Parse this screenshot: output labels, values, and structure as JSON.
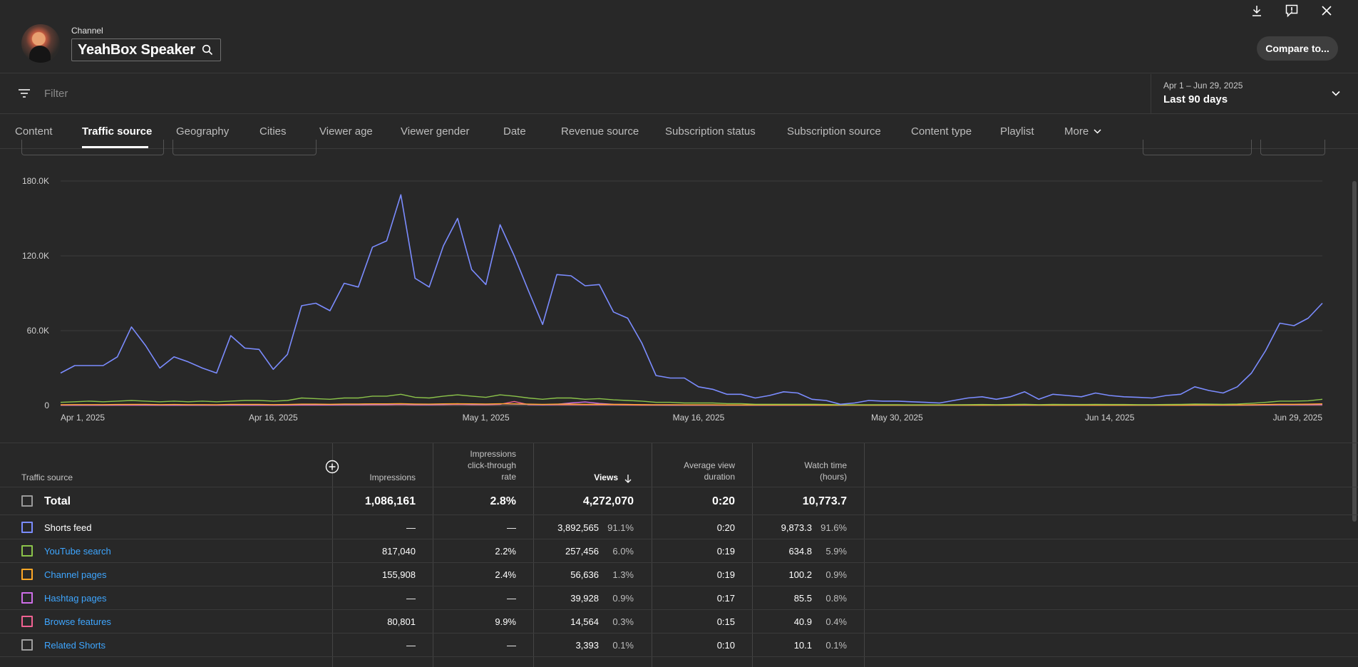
{
  "header": {
    "channel_label": "Channel",
    "channel_name": "YeahBox Speaker",
    "compare_button": "Compare to..."
  },
  "filter": {
    "placeholder": "Filter",
    "date_range_sub": "Apr 1 – Jun 29, 2025",
    "date_range_label": "Last 90 days"
  },
  "tabs": [
    {
      "label": "Content"
    },
    {
      "label": "Traffic source",
      "active": true
    },
    {
      "label": "Geography"
    },
    {
      "label": "Cities"
    },
    {
      "label": "Viewer age"
    },
    {
      "label": "Viewer gender"
    },
    {
      "label": "Date"
    },
    {
      "label": "Revenue source"
    },
    {
      "label": "Subscription status"
    },
    {
      "label": "Subscription source"
    },
    {
      "label": "Content type"
    },
    {
      "label": "Playlist"
    },
    {
      "label": "More"
    }
  ],
  "chart_data": {
    "type": "line",
    "y_tick_labels": [
      "180.0K",
      "120.0K",
      "60.0K",
      "0"
    ],
    "y_ticks": [
      180000,
      120000,
      60000,
      0
    ],
    "ylim": [
      0,
      180000
    ],
    "x_tick_labels": [
      "Apr 1, 2025",
      "Apr 16, 2025",
      "May 1, 2025",
      "May 16, 2025",
      "May 30, 2025",
      "Jun 14, 2025",
      "Jun 29, 2025"
    ],
    "x_tick_days": [
      0,
      15,
      30,
      45,
      59,
      74,
      89
    ],
    "grid": true,
    "series": [
      {
        "color": "#7b8cff",
        "values": [
          26000,
          32000,
          32000,
          32000,
          39000,
          63000,
          48000,
          30000,
          39000,
          35000,
          30000,
          26000,
          56000,
          46000,
          45000,
          29000,
          41000,
          80000,
          82000,
          76000,
          98000,
          95000,
          127000,
          132000,
          169000,
          102000,
          95000,
          128000,
          150000,
          109000,
          97000,
          145000,
          120000,
          92000,
          65000,
          105000,
          104000,
          96000,
          97000,
          75000,
          70000,
          50000,
          24000,
          22000,
          22000,
          15000,
          13000,
          9000,
          9000,
          6000,
          8000,
          11000,
          10000,
          5000,
          4000,
          1000,
          2000,
          4000,
          3500,
          3500,
          3000,
          2500,
          2000,
          4000,
          6000,
          7000,
          5000,
          7000,
          11000,
          5000,
          9000,
          8000,
          7000,
          10000,
          8000,
          7000,
          6500,
          6000,
          8000,
          9000,
          15000,
          12000,
          10000,
          15000,
          26000,
          44000,
          66000,
          64000,
          70000,
          82000
        ]
      },
      {
        "color": "#8bc34a",
        "values": [
          2500,
          3000,
          3500,
          3000,
          3500,
          4000,
          3500,
          3000,
          3500,
          3000,
          3500,
          3000,
          3500,
          4000,
          4000,
          3500,
          4000,
          6000,
          5500,
          5000,
          6000,
          6000,
          7500,
          7500,
          9000,
          6500,
          6000,
          7500,
          8500,
          7500,
          6500,
          8500,
          7500,
          6000,
          5000,
          6000,
          6000,
          5000,
          5500,
          4500,
          4000,
          3500,
          2500,
          2500,
          2000,
          2000,
          2000,
          1500,
          1500,
          1000,
          1000,
          1000,
          1000,
          1000,
          800,
          600,
          600,
          600,
          600,
          600,
          500,
          500,
          500,
          600,
          700,
          800,
          700,
          800,
          1000,
          700,
          900,
          800,
          800,
          900,
          800,
          800,
          700,
          700,
          800,
          900,
          1200,
          1100,
          1000,
          1200,
          1800,
          2500,
          3500,
          3500,
          3800,
          5000
        ]
      },
      {
        "color": "#ffa726",
        "values": [
          600,
          700,
          700,
          700,
          800,
          900,
          900,
          700,
          800,
          700,
          700,
          600,
          900,
          900,
          900,
          700,
          800,
          1100,
          1100,
          1000,
          1200,
          1200,
          1300,
          1300,
          1500,
          1200,
          1100,
          1300,
          1400,
          1300,
          1200,
          1400,
          1300,
          1100,
          900,
          1100,
          1100,
          1000,
          1000,
          900,
          800,
          700,
          600,
          600,
          500,
          500,
          500,
          400,
          400,
          400,
          400,
          400,
          400,
          400,
          300,
          300,
          300,
          300,
          300,
          300,
          300,
          300,
          300,
          300,
          300,
          300,
          300,
          300,
          400,
          300,
          300,
          300,
          300,
          300,
          300,
          300,
          300,
          300,
          300,
          300,
          400,
          400,
          400,
          400,
          600,
          800,
          1000,
          1000,
          1100,
          1300
        ]
      },
      {
        "color": "#ce6ee8",
        "values": [
          300,
          300,
          300,
          300,
          400,
          500,
          400,
          300,
          300,
          300,
          300,
          300,
          400,
          400,
          400,
          300,
          400,
          600,
          600,
          500,
          700,
          700,
          900,
          900,
          1200,
          800,
          700,
          1000,
          1400,
          1000,
          900,
          1300,
          1100,
          900,
          600,
          1000,
          2000,
          2800,
          1600,
          1000,
          800,
          600,
          400,
          300,
          300,
          300,
          300,
          200,
          200,
          200,
          200,
          200,
          200,
          200,
          200,
          200,
          200,
          200,
          200,
          200,
          200,
          200,
          200,
          200,
          200,
          200,
          200,
          200,
          200,
          200,
          200,
          200,
          200,
          200,
          200,
          200,
          200,
          200,
          200,
          200,
          300,
          300,
          300,
          300,
          400,
          500,
          700,
          700,
          800,
          900
        ]
      },
      {
        "color": "#f06292",
        "values": [
          200,
          200,
          200,
          200,
          300,
          300,
          300,
          200,
          200,
          200,
          200,
          200,
          300,
          300,
          300,
          200,
          300,
          400,
          400,
          400,
          500,
          500,
          600,
          600,
          800,
          500,
          500,
          700,
          900,
          700,
          600,
          900,
          3200,
          700,
          500,
          600,
          600,
          500,
          500,
          500,
          400,
          300,
          300,
          200,
          200,
          200,
          200,
          200,
          200,
          200,
          200,
          200,
          200,
          200,
          200,
          200,
          200,
          200,
          200,
          200,
          200,
          200,
          200,
          200,
          200,
          200,
          200,
          200,
          200,
          200,
          200,
          200,
          200,
          200,
          200,
          200,
          200,
          200,
          200,
          200,
          200,
          200,
          200,
          200,
          300,
          400,
          500,
          500,
          500,
          600
        ]
      }
    ]
  },
  "table": {
    "headers": {
      "source": "Traffic source",
      "impressions": "Impressions",
      "ctr_1": "Impressions",
      "ctr_2": "click-through",
      "ctr_3": "rate",
      "views": "Views",
      "avd_1": "Average view",
      "avd_2": "duration",
      "wt_1": "Watch time",
      "wt_2": "(hours)"
    },
    "total": {
      "label": "Total",
      "impressions": "1,086,161",
      "ctr": "2.8%",
      "views": "4,272,070",
      "avd": "0:20",
      "watch": "10,773.7"
    },
    "rows": [
      {
        "label": "Shorts feed",
        "color": "#7b8cff",
        "impressions": "—",
        "ctr": "—",
        "views": "3,892,565",
        "views_pct": "91.1%",
        "avd": "0:20",
        "watch": "9,873.3",
        "watch_pct": "91.6%"
      },
      {
        "label": "YouTube search",
        "color": "#8bc34a",
        "impressions": "817,040",
        "ctr": "2.2%",
        "views": "257,456",
        "views_pct": "6.0%",
        "avd": "0:19",
        "watch": "634.8",
        "watch_pct": "5.9%"
      },
      {
        "label": "Channel pages",
        "color": "#ffa726",
        "impressions": "155,908",
        "ctr": "2.4%",
        "views": "56,636",
        "views_pct": "1.3%",
        "avd": "0:19",
        "watch": "100.2",
        "watch_pct": "0.9%"
      },
      {
        "label": "Hashtag pages",
        "color": "#ce6ee8",
        "impressions": "—",
        "ctr": "—",
        "views": "39,928",
        "views_pct": "0.9%",
        "avd": "0:17",
        "watch": "85.5",
        "watch_pct": "0.8%"
      },
      {
        "label": "Browse features",
        "color": "#f06292",
        "impressions": "80,801",
        "ctr": "9.9%",
        "views": "14,564",
        "views_pct": "0.3%",
        "avd": "0:15",
        "watch": "40.9",
        "watch_pct": "0.4%"
      },
      {
        "label": "Related Shorts",
        "color": "#9e9e9e",
        "impressions": "—",
        "ctr": "—",
        "views": "3,393",
        "views_pct": "0.1%",
        "avd": "0:10",
        "watch": "10.1",
        "watch_pct": "0.1%"
      }
    ]
  },
  "icons": [
    "download-icon",
    "feedback-icon",
    "close-icon",
    "search-icon",
    "filter-icon",
    "chevron-down-icon",
    "add-column-icon",
    "sort-down-icon"
  ]
}
